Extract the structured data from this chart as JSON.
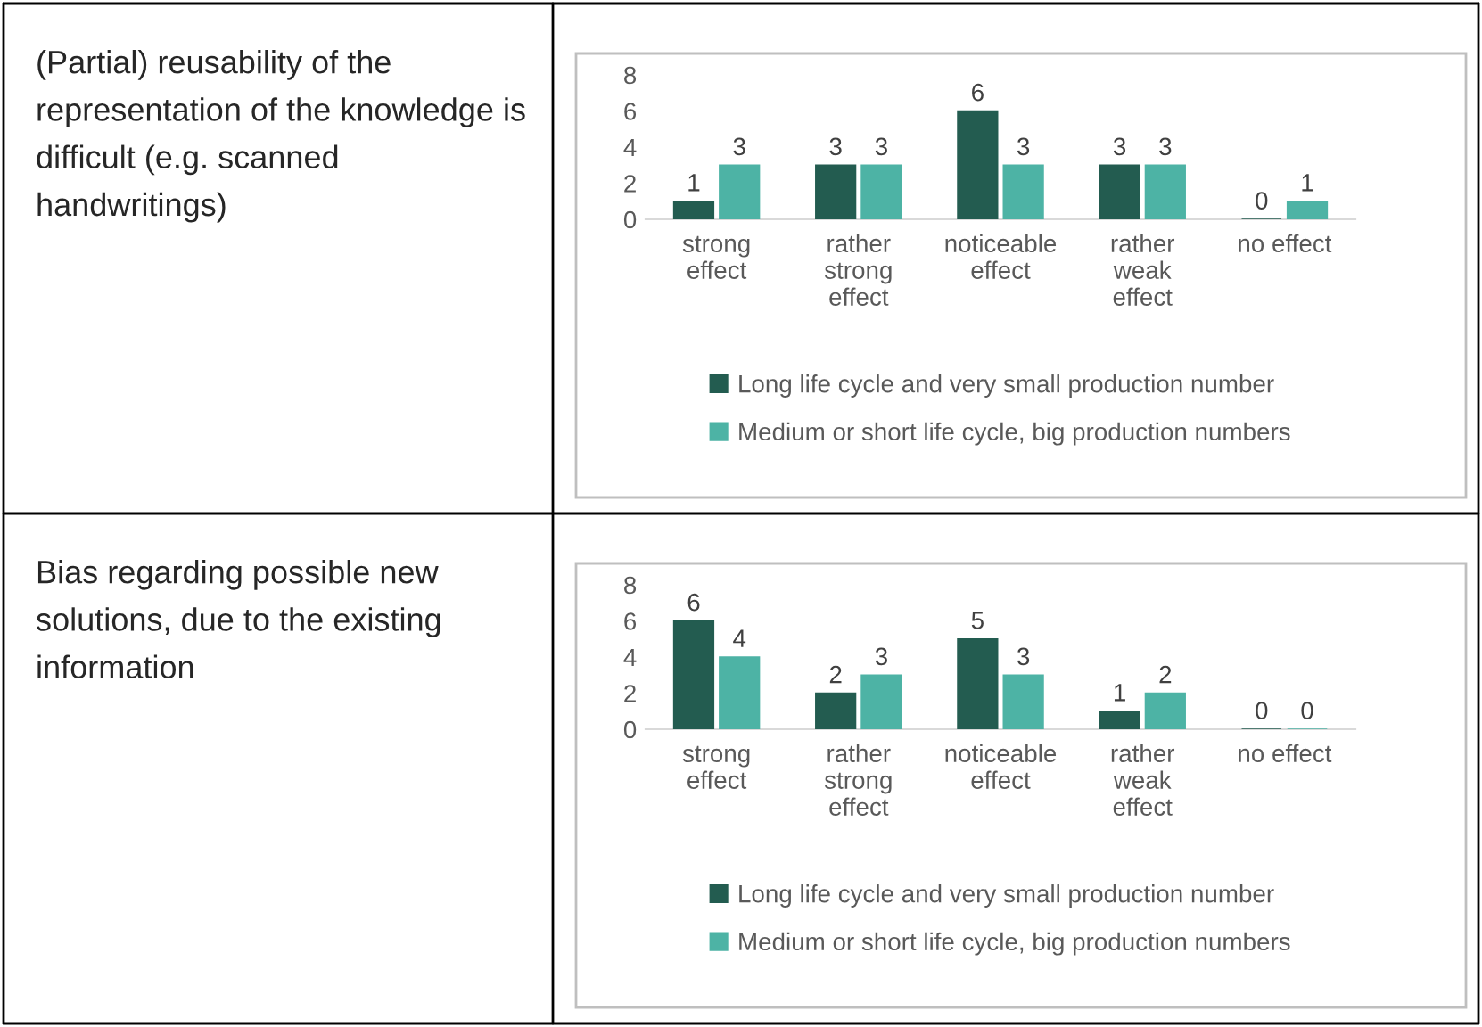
{
  "chart_data": [
    {
      "type": "bar",
      "title": "(Partial) reusability of the representation of the knowledge is difficult (e.g. scanned handwritings)",
      "categories": [
        "strong effect",
        "rather strong effect",
        "noticeable effect",
        "rather weak effect",
        "no effect"
      ],
      "series": [
        {
          "name": "Long life cycle and very small production number",
          "color": "#235c50",
          "values": [
            1,
            3,
            6,
            3,
            0
          ]
        },
        {
          "name": "Medium or short life cycle, big production numbers",
          "color": "#4db3a5",
          "values": [
            3,
            3,
            3,
            3,
            1
          ]
        }
      ],
      "ylim": [
        0,
        8
      ],
      "yticks": [
        0,
        2,
        4,
        6,
        8
      ],
      "grid": false,
      "legend": "bottom",
      "data_labels": true
    },
    {
      "type": "bar",
      "title": "Bias regarding possible new solutions, due to the existing information",
      "categories": [
        "strong effect",
        "rather strong effect",
        "noticeable effect",
        "rather weak effect",
        "no effect"
      ],
      "series": [
        {
          "name": "Long life cycle and very small production number",
          "color": "#235c50",
          "values": [
            6,
            2,
            5,
            1,
            0
          ]
        },
        {
          "name": "Medium or short life cycle, big production numbers",
          "color": "#4db3a5",
          "values": [
            4,
            3,
            3,
            2,
            0
          ]
        }
      ],
      "ylim": [
        0,
        8
      ],
      "yticks": [
        0,
        2,
        4,
        6,
        8
      ],
      "grid": false,
      "legend": "bottom",
      "data_labels": true
    }
  ]
}
